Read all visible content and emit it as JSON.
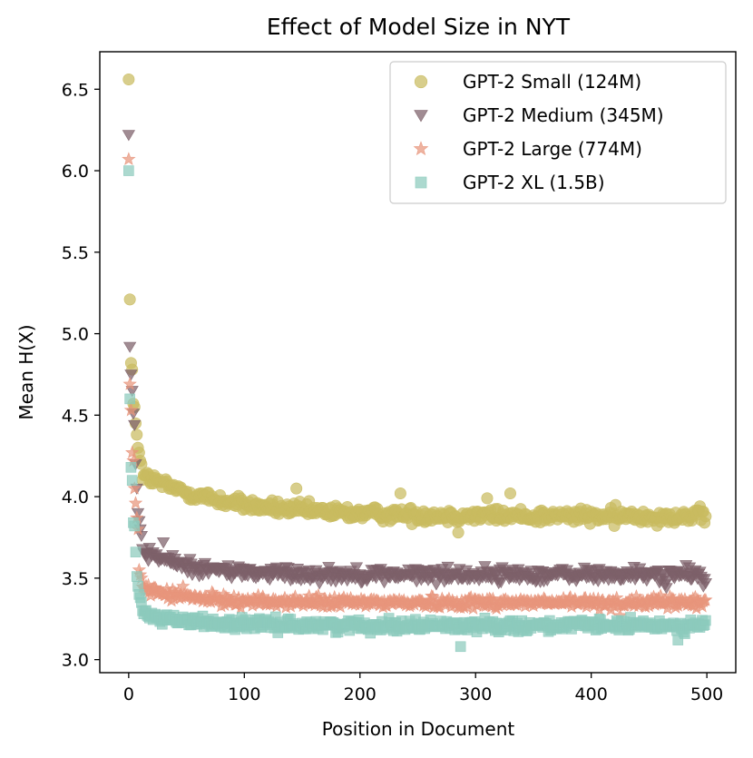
{
  "chart_data": {
    "type": "scatter",
    "title": "Effect of Model Size in NYT",
    "xlabel": "Position in Document",
    "ylabel": "Mean H(X)",
    "xlim": [
      -25,
      525
    ],
    "ylim": [
      2.92,
      6.73
    ],
    "xticks": [
      0,
      100,
      200,
      300,
      400,
      500
    ],
    "yticks": [
      3.0,
      3.5,
      4.0,
      4.5,
      5.0,
      5.5,
      6.0,
      6.5
    ],
    "grid": false,
    "legend_position": "top-right",
    "x_range": [
      0,
      499
    ],
    "series": [
      {
        "name": "GPT-2 Small (124M)",
        "marker": "circle",
        "color": "#c9bb5f",
        "first_points": [
          6.56,
          5.21,
          4.82,
          4.78,
          4.57,
          4.55,
          4.45,
          4.38,
          4.3,
          4.27,
          4.22,
          4.2
        ],
        "plateau": 3.88,
        "decay_amplitude": 0.3,
        "decay_scale": 70,
        "noise": 0.045,
        "outliers": [
          [
            145,
            4.05
          ],
          [
            235,
            4.02
          ],
          [
            285,
            3.78
          ],
          [
            310,
            3.99
          ],
          [
            330,
            4.02
          ],
          [
            420,
            3.82
          ],
          [
            498,
            3.84
          ]
        ]
      },
      {
        "name": "GPT-2 Medium (345M)",
        "marker": "triangle-down",
        "color": "#7d6069",
        "first_points": [
          6.22,
          4.92,
          4.75,
          4.65,
          4.51,
          4.44,
          4.2,
          4.05,
          3.9,
          3.85,
          3.8,
          3.76
        ],
        "plateau": 3.52,
        "decay_amplitude": 0.2,
        "decay_scale": 40,
        "noise": 0.045,
        "outliers": [
          [
            30,
            3.72
          ],
          [
            465,
            3.44
          ],
          [
            497,
            3.45
          ]
        ]
      },
      {
        "name": "GPT-2 Large (774M)",
        "marker": "star",
        "color": "#e8957c",
        "first_points": [
          6.07,
          4.69,
          4.53,
          4.27,
          4.22,
          4.05,
          3.96,
          3.87,
          3.8,
          3.55,
          3.52,
          3.5
        ],
        "plateau": 3.35,
        "decay_amplitude": 0.12,
        "decay_scale": 40,
        "noise": 0.035,
        "outliers": [
          [
            47,
            3.45
          ],
          [
            425,
            3.27
          ],
          [
            500,
            3.26
          ]
        ]
      },
      {
        "name": "GPT-2 XL (1.5B)",
        "marker": "square",
        "color": "#8ccabd",
        "first_points": [
          6.0,
          4.6,
          4.18,
          4.1,
          3.84,
          3.82,
          3.66,
          3.51,
          3.45,
          3.4,
          3.38,
          3.35
        ],
        "plateau": 3.21,
        "decay_amplitude": 0.1,
        "decay_scale": 40,
        "noise": 0.035,
        "outliers": [
          [
            287,
            3.08
          ],
          [
            475,
            3.12
          ],
          [
            499,
            3.24
          ]
        ]
      }
    ]
  }
}
